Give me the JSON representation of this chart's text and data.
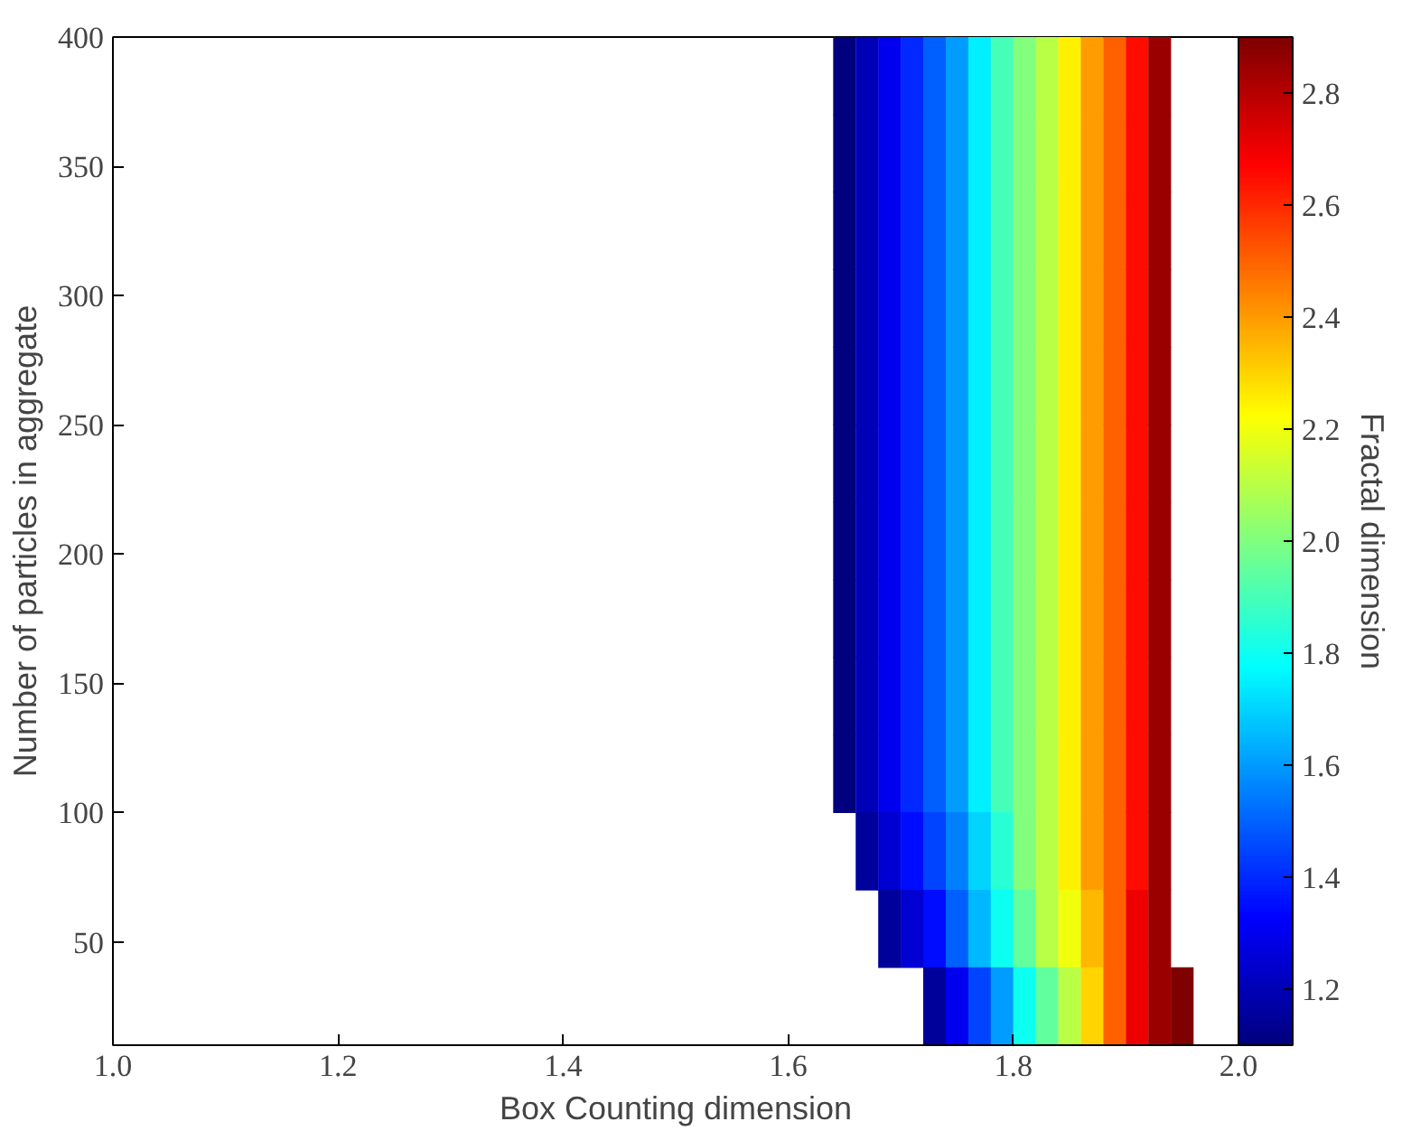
{
  "chart_data": {
    "type": "heatmap",
    "xlabel": "Box Counting dimension",
    "ylabel": "Number of particles in aggregate",
    "clabel": "Fractal dimension",
    "xlim": [
      1.0,
      2.0
    ],
    "ylim": [
      10,
      400
    ],
    "xticks": [
      {
        "value": 1,
        "label": "1.0"
      },
      1.2,
      1.4,
      1.6,
      1.8,
      {
        "value": 2,
        "label": "2.0"
      }
    ],
    "yticks": [
      50,
      100,
      150,
      200,
      250,
      300,
      350,
      400
    ],
    "clim": [
      1.1,
      2.9
    ],
    "cticks": [
      1.2,
      1.4,
      1.6,
      1.8,
      {
        "value": 2,
        "label": "2.0"
      },
      2.2,
      2.4,
      2.6,
      2.8
    ],
    "grid": false,
    "x": [
      1.65,
      1.67,
      1.69,
      1.71,
      1.73,
      1.75,
      1.77,
      1.79,
      1.81,
      1.83,
      1.85,
      1.87,
      1.89,
      1.91,
      1.93,
      1.95
    ],
    "y": [
      385,
      355,
      325,
      295,
      265,
      235,
      205,
      175,
      145,
      115,
      85,
      55,
      25
    ],
    "cells": [
      [
        1.1,
        1.2,
        1.3,
        1.4,
        1.5,
        1.6,
        1.75,
        1.9,
        2.0,
        2.1,
        2.25,
        2.4,
        2.5,
        2.65,
        2.85,
        null
      ],
      [
        1.1,
        1.2,
        1.3,
        1.4,
        1.5,
        1.6,
        1.75,
        1.9,
        2.0,
        2.1,
        2.25,
        2.4,
        2.5,
        2.65,
        2.85,
        null
      ],
      [
        1.1,
        1.2,
        1.3,
        1.4,
        1.5,
        1.6,
        1.75,
        1.9,
        2.0,
        2.1,
        2.25,
        2.4,
        2.5,
        2.65,
        2.85,
        null
      ],
      [
        1.1,
        1.2,
        1.3,
        1.4,
        1.5,
        1.6,
        1.75,
        1.9,
        2.0,
        2.1,
        2.25,
        2.4,
        2.5,
        2.65,
        2.85,
        null
      ],
      [
        1.1,
        1.2,
        1.3,
        1.4,
        1.5,
        1.6,
        1.75,
        1.9,
        2.0,
        2.1,
        2.25,
        2.4,
        2.5,
        2.65,
        2.85,
        null
      ],
      [
        1.1,
        1.2,
        1.3,
        1.4,
        1.5,
        1.6,
        1.75,
        1.9,
        2.0,
        2.1,
        2.25,
        2.4,
        2.5,
        2.65,
        2.85,
        null
      ],
      [
        1.1,
        1.2,
        1.3,
        1.4,
        1.5,
        1.6,
        1.75,
        1.9,
        2.0,
        2.1,
        2.25,
        2.4,
        2.5,
        2.65,
        2.85,
        null
      ],
      [
        1.1,
        1.2,
        1.3,
        1.4,
        1.5,
        1.6,
        1.75,
        1.9,
        2.0,
        2.1,
        2.25,
        2.4,
        2.5,
        2.65,
        2.85,
        null
      ],
      [
        1.1,
        1.2,
        1.3,
        1.4,
        1.5,
        1.6,
        1.75,
        1.9,
        2.0,
        2.1,
        2.25,
        2.4,
        2.5,
        2.65,
        2.85,
        null
      ],
      [
        1.1,
        1.2,
        1.3,
        1.4,
        1.5,
        1.6,
        1.75,
        1.9,
        2.0,
        2.1,
        2.25,
        2.4,
        2.5,
        2.65,
        2.85,
        null
      ],
      [
        null,
        1.15,
        1.25,
        1.35,
        1.45,
        1.55,
        1.7,
        1.85,
        2.0,
        2.1,
        2.25,
        2.4,
        2.5,
        2.65,
        2.85,
        null
      ],
      [
        null,
        null,
        1.15,
        1.25,
        1.35,
        1.5,
        1.65,
        1.8,
        1.95,
        2.1,
        2.2,
        2.35,
        2.5,
        2.7,
        2.85,
        null
      ],
      [
        null,
        null,
        null,
        null,
        1.15,
        1.3,
        1.45,
        1.6,
        1.8,
        1.95,
        2.1,
        2.3,
        2.5,
        2.7,
        2.85,
        2.9
      ]
    ]
  }
}
